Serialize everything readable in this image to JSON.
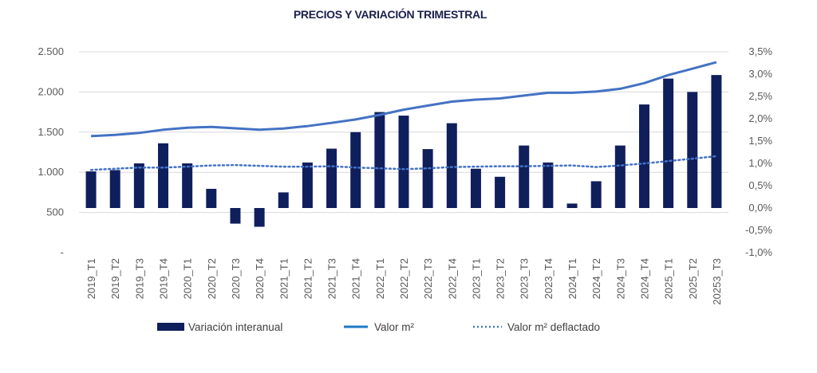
{
  "chart_data": {
    "type": "bar",
    "title": "PRECIOS Y VARIACIÓN TRIMESTRAL",
    "categories": [
      "2019_T1",
      "2019_T2",
      "2019_T3",
      "2019_T4",
      "2020_T1",
      "2020_T2",
      "2020_T3",
      "2020_T4",
      "2021_T1",
      "2021_T2",
      "2021_T3",
      "2021_T4",
      "2022_T1",
      "2022_T2",
      "2022_T3",
      "2022_T4",
      "2023_T1",
      "2023_T2",
      "2023_T3",
      "2023_T4",
      "2024_T1",
      "2024_T2",
      "2024_T3",
      "2024_T4",
      "2025_T1",
      "2025_T2",
      "20253_T3"
    ],
    "left_axis": {
      "ylim": [
        0,
        2500
      ],
      "ticks": [
        0,
        500,
        1000,
        1500,
        2000,
        2500
      ],
      "tick_labels": [
        "-",
        "500",
        "1.000",
        "1.500",
        "2.000",
        "2.500"
      ]
    },
    "right_axis": {
      "ylim": [
        -1.0,
        3.5
      ],
      "ticks": [
        -1.0,
        -0.5,
        0.0,
        0.5,
        1.0,
        1.5,
        2.0,
        2.5,
        3.0,
        3.5
      ],
      "tick_labels": [
        "-1,0%",
        "-0,5%",
        "0,0%",
        "0,5%",
        "1,0%",
        "1,5%",
        "2,0%",
        "2,5%",
        "3,0%",
        "3,5%"
      ]
    },
    "series": [
      {
        "name": "Variación interanual",
        "type": "bar",
        "axis": "right",
        "color": "#0f1f5c",
        "values": [
          0.82,
          0.85,
          1.0,
          1.45,
          1.0,
          0.43,
          -0.35,
          -0.42,
          0.35,
          1.02,
          1.33,
          1.7,
          2.15,
          2.07,
          1.32,
          1.9,
          0.88,
          0.7,
          1.4,
          1.02,
          0.1,
          0.6,
          1.4,
          2.32,
          2.9,
          2.6,
          2.98
        ]
      },
      {
        "name": "Valor m²",
        "type": "line",
        "axis": "left",
        "color": "#4472c4",
        "values": [
          1450,
          1465,
          1490,
          1530,
          1555,
          1565,
          1548,
          1530,
          1545,
          1575,
          1615,
          1658,
          1715,
          1780,
          1830,
          1880,
          1905,
          1920,
          1955,
          1990,
          1990,
          2005,
          2040,
          2110,
          2210,
          2290,
          2370
        ]
      },
      {
        "name": "Valor m² deflactado",
        "type": "line",
        "style": "dotted",
        "axis": "left",
        "color": "#4472c4",
        "values": [
          1030,
          1045,
          1060,
          1060,
          1070,
          1085,
          1090,
          1080,
          1070,
          1070,
          1075,
          1060,
          1050,
          1040,
          1050,
          1065,
          1070,
          1075,
          1075,
          1080,
          1085,
          1065,
          1085,
          1110,
          1140,
          1170,
          1200
        ]
      }
    ],
    "legend": {
      "placement": "bottom",
      "items": [
        "Variación interanual",
        "Valor m²",
        "Valor m² deflactado"
      ]
    }
  }
}
